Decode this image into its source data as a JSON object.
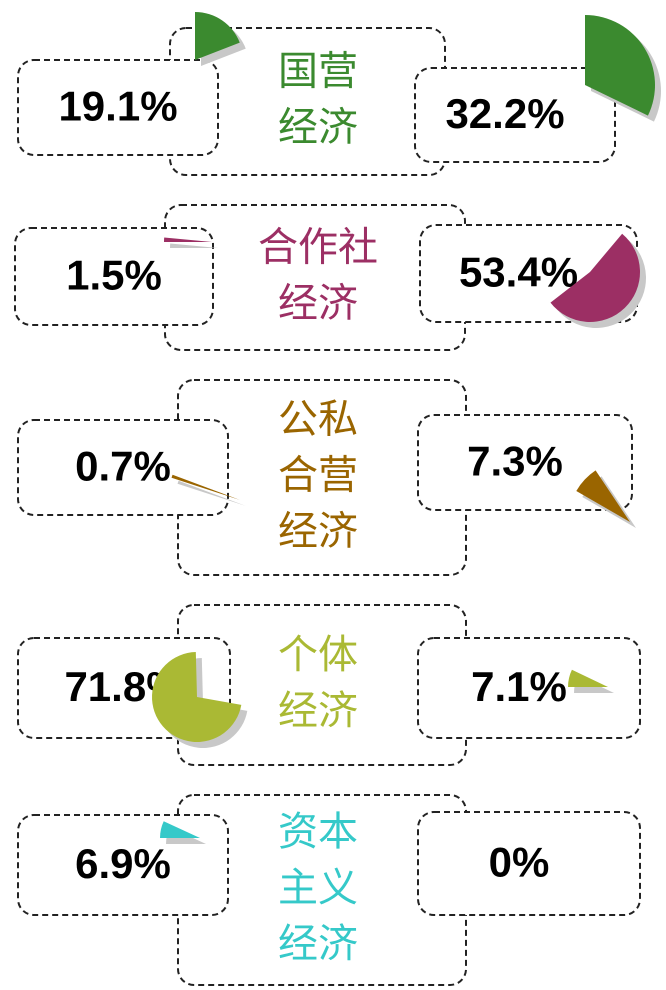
{
  "rows": [
    {
      "label": [
        "国营",
        "经济"
      ],
      "color": "#3b8a2f",
      "left": {
        "value": 19.1,
        "label": "19.1%"
      },
      "right": {
        "value": 32.2,
        "label": "32.2%"
      }
    },
    {
      "label": [
        "合作社",
        "经济"
      ],
      "color": "#9c2f64",
      "left": {
        "value": 1.5,
        "label": "1.5%"
      },
      "right": {
        "value": 53.4,
        "label": "53.4%"
      }
    },
    {
      "label": [
        "公私",
        "合营",
        "经济"
      ],
      "color": "#9a6500",
      "left": {
        "value": 0.7,
        "label": "0.7%"
      },
      "right": {
        "value": 7.3,
        "label": "7.3%"
      }
    },
    {
      "label": [
        "个体",
        "经济"
      ],
      "color": "#aab934",
      "left": {
        "value": 71.8,
        "label": "71.8%"
      },
      "right": {
        "value": 7.1,
        "label": "7.1%"
      }
    },
    {
      "label": [
        "资本",
        "主义",
        "经济"
      ],
      "color": "#35c9c9",
      "left": {
        "value": 6.9,
        "label": "6.9%"
      },
      "right": {
        "value": 0,
        "label": "0%"
      }
    }
  ]
}
